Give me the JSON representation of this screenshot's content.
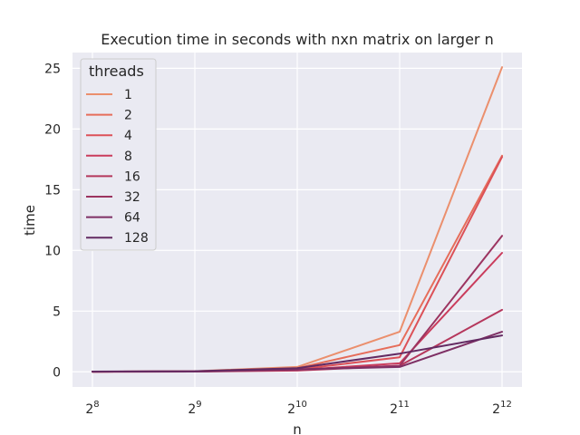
{
  "chart_data": {
    "type": "line",
    "title": "Execution time in seconds with nxn matrix on larger n",
    "xlabel": "n",
    "ylabel": "time",
    "x_scale": "log2",
    "x": [
      256,
      512,
      1024,
      2048,
      4096
    ],
    "x_ticks": [
      {
        "base": "2",
        "exp": "8"
      },
      {
        "base": "2",
        "exp": "9"
      },
      {
        "base": "2",
        "exp": "10"
      },
      {
        "base": "2",
        "exp": "11"
      },
      {
        "base": "2",
        "exp": "12"
      }
    ],
    "yticks": [
      0,
      5,
      10,
      15,
      20,
      25
    ],
    "ylim": [
      -1.25,
      26.3
    ],
    "grid": true,
    "legend": {
      "title": "threads",
      "placement": "top-left"
    },
    "series": [
      {
        "name": "1",
        "color": "#eb8f6d",
        "values": [
          0.01,
          0.05,
          0.4,
          3.3,
          25.1
        ]
      },
      {
        "name": "2",
        "color": "#e66d5a",
        "values": [
          0.01,
          0.04,
          0.3,
          2.2,
          17.8
        ]
      },
      {
        "name": "4",
        "color": "#dc5158",
        "values": [
          0.01,
          0.03,
          0.2,
          1.2,
          17.7
        ]
      },
      {
        "name": "8",
        "color": "#ca3c5c",
        "values": [
          0.01,
          0.02,
          0.15,
          0.7,
          9.8
        ]
      },
      {
        "name": "16",
        "color": "#b5375c",
        "values": [
          0.01,
          0.02,
          0.1,
          0.5,
          5.1
        ]
      },
      {
        "name": "32",
        "color": "#9c3460",
        "values": [
          0.01,
          0.03,
          0.2,
          0.5,
          11.2
        ]
      },
      {
        "name": "64",
        "color": "#7e2f64",
        "values": [
          0.01,
          0.03,
          0.2,
          0.4,
          3.3
        ]
      },
      {
        "name": "128",
        "color": "#632a62",
        "values": [
          0.02,
          0.05,
          0.3,
          1.5,
          3.0
        ]
      }
    ]
  }
}
